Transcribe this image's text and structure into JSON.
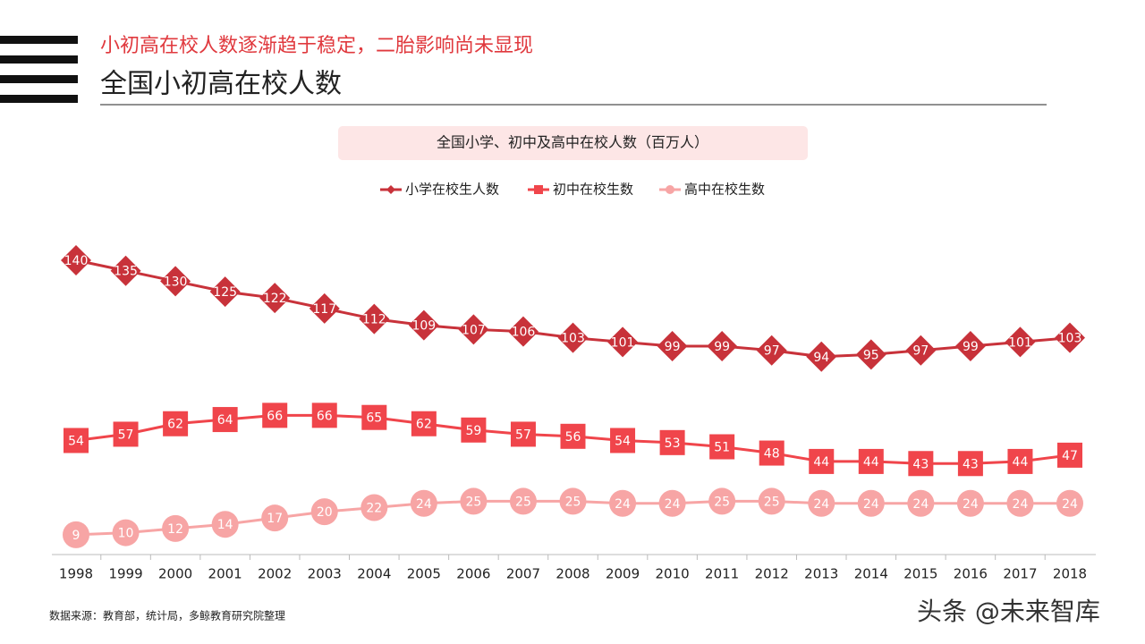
{
  "header": {
    "subtitle": "小初高在校人数逐渐趋于稳定，二胎影响尚未显现",
    "title": "全国小初高在校人数"
  },
  "chart_data": {
    "type": "line",
    "title": "全国小学、初中及高中在校人数（百万人）",
    "categories": [
      "1998",
      "1999",
      "2000",
      "2001",
      "2002",
      "2003",
      "2004",
      "2005",
      "2006",
      "2007",
      "2008",
      "2009",
      "2010",
      "2011",
      "2012",
      "2013",
      "2014",
      "2015",
      "2016",
      "2017",
      "2018"
    ],
    "ylim": [
      0,
      140
    ],
    "series": [
      {
        "name": "小学在校生人数",
        "color": "#c8323a",
        "marker": "diamond",
        "values": [
          140,
          135,
          130,
          125,
          122,
          117,
          112,
          109,
          107,
          106,
          103,
          101,
          99,
          99,
          97,
          94,
          95,
          97,
          99,
          101,
          103
        ]
      },
      {
        "name": "初中在校生数",
        "color": "#f0454b",
        "marker": "square",
        "values": [
          54,
          57,
          62,
          64,
          66,
          66,
          65,
          62,
          59,
          57,
          56,
          54,
          53,
          51,
          48,
          44,
          44,
          43,
          43,
          44,
          47
        ]
      },
      {
        "name": "高中在校生数",
        "color": "#f7a5a5",
        "marker": "circle",
        "values": [
          9,
          10,
          12,
          14,
          17,
          20,
          22,
          24,
          25,
          25,
          25,
          24,
          24,
          25,
          25,
          24,
          24,
          24,
          24,
          24,
          24
        ]
      }
    ]
  },
  "source": "数据来源：教育部，统计局，多鲸教育研究院整理",
  "watermark": "头条 @未来智库"
}
